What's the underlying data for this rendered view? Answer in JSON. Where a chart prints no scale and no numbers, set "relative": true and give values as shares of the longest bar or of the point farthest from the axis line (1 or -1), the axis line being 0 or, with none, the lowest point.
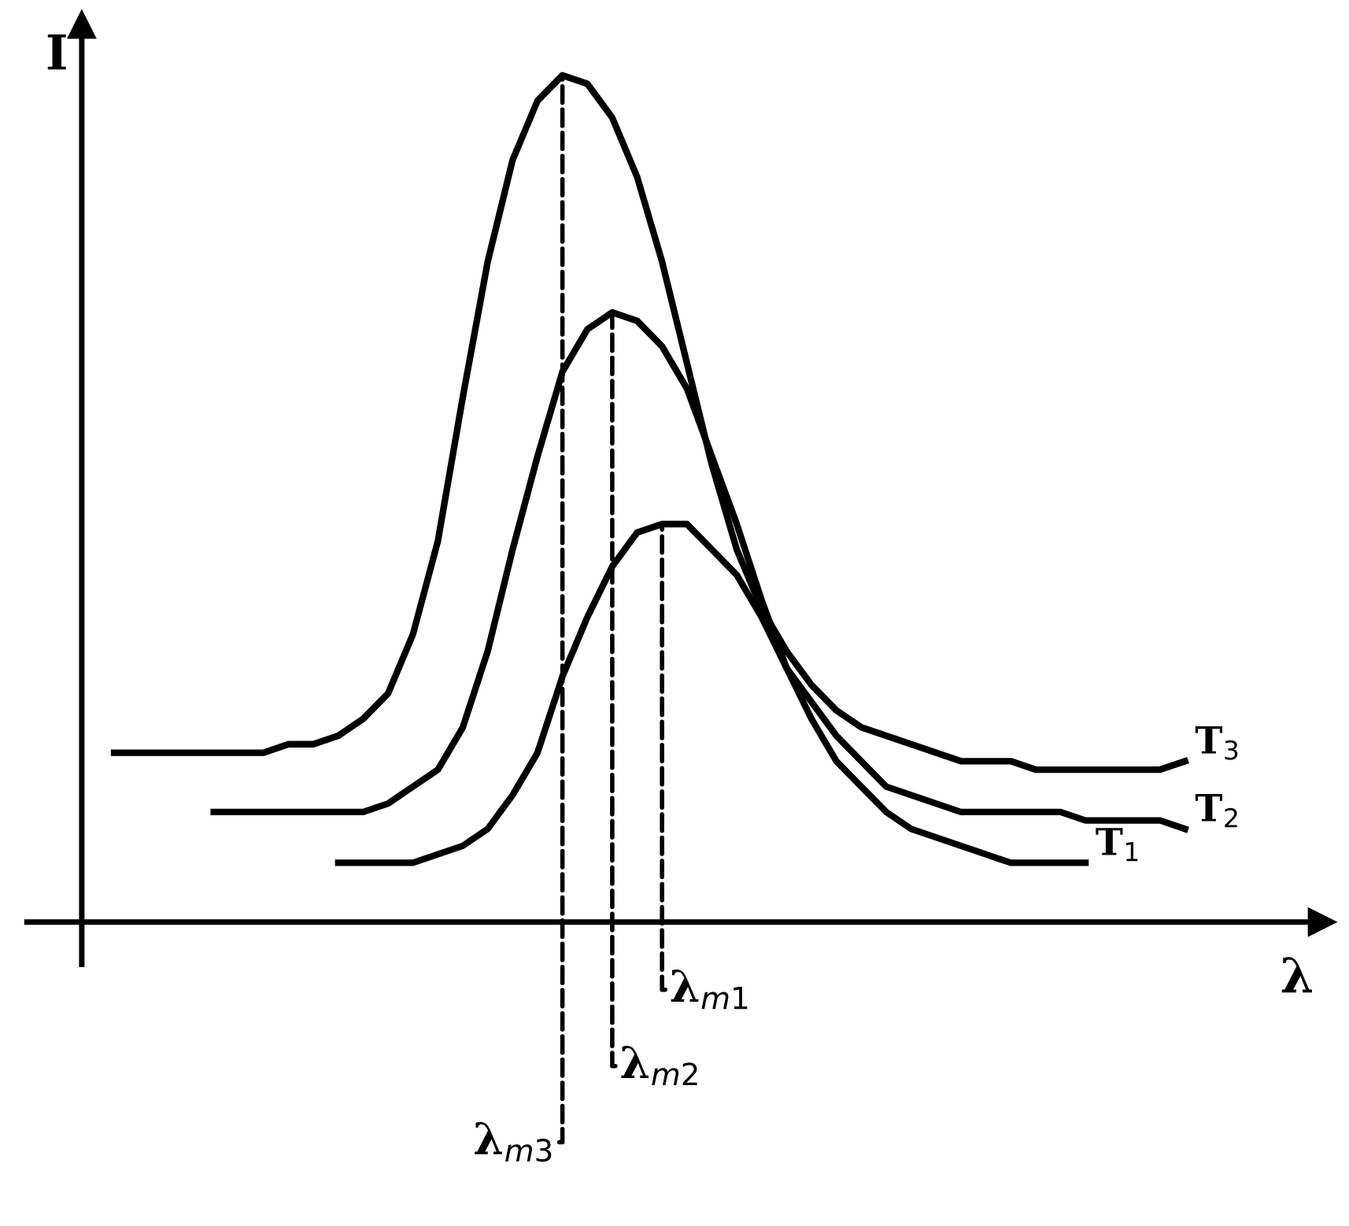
{
  "chart_data": {
    "type": "line",
    "relative": true,
    "xlabel": "λ",
    "ylabel": "I",
    "categories": [
      null,
      null,
      null,
      null,
      null,
      null,
      null,
      null,
      null,
      null,
      null,
      null,
      null,
      null,
      null,
      null,
      null,
      null,
      null,
      null,
      null,
      null,
      null,
      null,
      null,
      null,
      null,
      null,
      null,
      null,
      null,
      null,
      null,
      null,
      null,
      null,
      null,
      null,
      null,
      null,
      null,
      null,
      null,
      null,
      null,
      null,
      null
    ],
    "series": [
      {
        "name": "T$_{1}$",
        "color": "#000000",
        "values": [
          null,
          null,
          null,
          null,
          null,
          null,
          null,
          null,
          null,
          null,
          0.07,
          0.07,
          0.07,
          0.07,
          0.08,
          0.09,
          0.11,
          0.15,
          0.2,
          0.29,
          0.36,
          0.42,
          0.46,
          0.47,
          0.47,
          0.44,
          0.41,
          0.36,
          0.3,
          0.24,
          0.19,
          0.16,
          0.13,
          0.11,
          0.1,
          0.09,
          0.08,
          0.07,
          0.07,
          0.07,
          0.07,
          null,
          null,
          null,
          null,
          null,
          null
        ]
      },
      {
        "name": "T$_{2}$",
        "color": "#000000",
        "values": [
          null,
          null,
          null,
          null,
          null,
          0.13,
          0.13,
          0.13,
          0.13,
          0.13,
          0.13,
          0.13,
          0.14,
          0.16,
          0.18,
          0.23,
          0.32,
          0.44,
          0.55,
          0.65,
          0.7,
          0.72,
          0.71,
          0.68,
          0.63,
          0.55,
          0.47,
          0.38,
          0.3,
          0.26,
          0.22,
          0.19,
          0.16,
          0.15,
          0.14,
          0.13,
          0.13,
          0.13,
          0.13,
          0.13,
          0.12,
          0.12,
          0.12,
          0.12,
          0.11,
          null,
          null
        ]
      },
      {
        "name": "T$_{3}$",
        "color": "#000000",
        "values": [
          null,
          0.2,
          0.2,
          0.2,
          0.2,
          0.2,
          0.2,
          0.2,
          0.21,
          0.21,
          0.22,
          0.24,
          0.27,
          0.34,
          0.45,
          0.62,
          0.78,
          0.9,
          0.97,
          1.0,
          0.99,
          0.95,
          0.88,
          0.78,
          0.66,
          0.54,
          0.44,
          0.37,
          0.32,
          0.28,
          0.25,
          0.23,
          0.22,
          0.21,
          0.2,
          0.19,
          0.19,
          0.19,
          0.18,
          0.18,
          0.18,
          0.18,
          0.18,
          0.18,
          0.19,
          null,
          null
        ]
      }
    ],
    "annotations": [
      "λ$_{m1}$",
      "λ$_{m2}$",
      "λ$_{m3}$"
    ],
    "legend": false,
    "grid": false,
    "marker": "none",
    "line_style": "solid"
  }
}
